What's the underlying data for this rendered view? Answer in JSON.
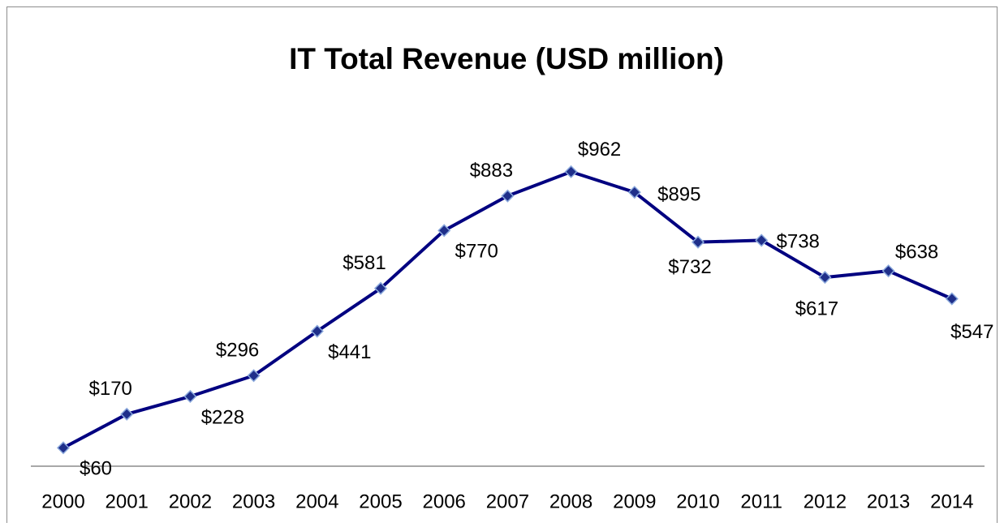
{
  "chart_data": {
    "type": "line",
    "title": "IT Total Revenue (USD million)",
    "categories": [
      "2000",
      "2001",
      "2002",
      "2003",
      "2004",
      "2005",
      "2006",
      "2007",
      "2008",
      "2009",
      "2010",
      "2011",
      "2012",
      "2013",
      "2014"
    ],
    "series": [
      {
        "name": "IT Total Revenue",
        "color": "#000080",
        "values": [
          60,
          170,
          228,
          296,
          441,
          581,
          770,
          883,
          962,
          895,
          732,
          738,
          617,
          638,
          547
        ],
        "value_labels": [
          "$60",
          "$170",
          "$228",
          "$296",
          "$441",
          "$581",
          "$770",
          "$883",
          "$962",
          "$895",
          "$732",
          "$738",
          "$617",
          "$638",
          "$547"
        ]
      }
    ],
    "ylim": [
      0,
      1200
    ],
    "legend": false,
    "grid": false
  }
}
